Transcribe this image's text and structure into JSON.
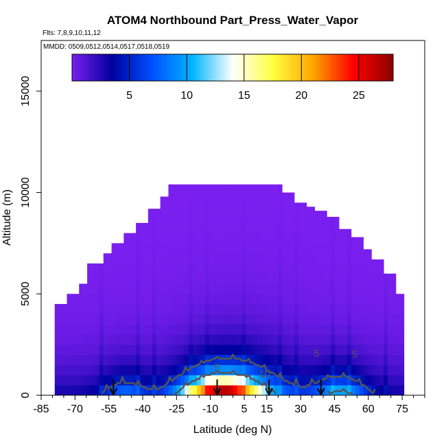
{
  "chart_data": {
    "type": "heatmap",
    "title": "ATOM4 Northbound Part_Press_Water_Vapor",
    "flights_label": "Flts: 7,8,9,10,11,12",
    "dates_label": "MMDD: 0509,0512,0514,0517,0518,0519",
    "xlabel": "Latitude (deg N)",
    "ylabel": "Altitude (m)",
    "xlim": [
      -85,
      85
    ],
    "ylim": [
      0,
      17500
    ],
    "x_ticks": [
      -85,
      -70,
      -55,
      -40,
      -25,
      -10,
      5,
      15,
      30,
      45,
      60,
      75
    ],
    "y_ticks": [
      0,
      5000,
      10000,
      15000
    ],
    "colorbar": {
      "range": [
        0,
        28
      ],
      "ticks": [
        5,
        10,
        15,
        20,
        25
      ],
      "colors": [
        "#7a1fef",
        "#00009e",
        "#0050ff",
        "#00b4ff",
        "#ffffff",
        "#ffff40",
        "#ffa500",
        "#ff0000",
        "#8b0000"
      ]
    },
    "contour_levels": [
      5,
      10
    ],
    "contour_labels": [
      {
        "text": "5",
        "lat": -7,
        "alt": 1200
      },
      {
        "text": "10",
        "lat": 14,
        "alt": 900
      },
      {
        "text": "5",
        "lat": 37,
        "alt": 1900
      },
      {
        "text": "5",
        "lat": 54,
        "alt": 1850
      }
    ],
    "profile_latitudes": [
      -53,
      -7,
      16,
      39
    ],
    "ceiling_profile": [
      {
        "lat": -79,
        "alt": 4500
      },
      {
        "lat": -74,
        "alt": 5000
      },
      {
        "lat": -69,
        "alt": 5500
      },
      {
        "lat": -64,
        "alt": 6500
      },
      {
        "lat": -58,
        "alt": 7000
      },
      {
        "lat": -53,
        "alt": 7500
      },
      {
        "lat": -48,
        "alt": 8000
      },
      {
        "lat": -43,
        "alt": 8500
      },
      {
        "lat": -37,
        "alt": 9200
      },
      {
        "lat": -32,
        "alt": 9800
      },
      {
        "lat": -28,
        "alt": 10400
      },
      {
        "lat": 12,
        "alt": 10400
      },
      {
        "lat": 22,
        "alt": 10000
      },
      {
        "lat": 27,
        "alt": 9500
      },
      {
        "lat": 32,
        "alt": 9300
      },
      {
        "lat": 37,
        "alt": 9100
      },
      {
        "lat": 42,
        "alt": 8800
      },
      {
        "lat": 47,
        "alt": 8200
      },
      {
        "lat": 52,
        "alt": 7800
      },
      {
        "lat": 57,
        "alt": 7200
      },
      {
        "lat": 62,
        "alt": 6700
      },
      {
        "lat": 67,
        "alt": 6000
      },
      {
        "lat": 72,
        "alt": 5000
      }
    ],
    "grid": false
  }
}
